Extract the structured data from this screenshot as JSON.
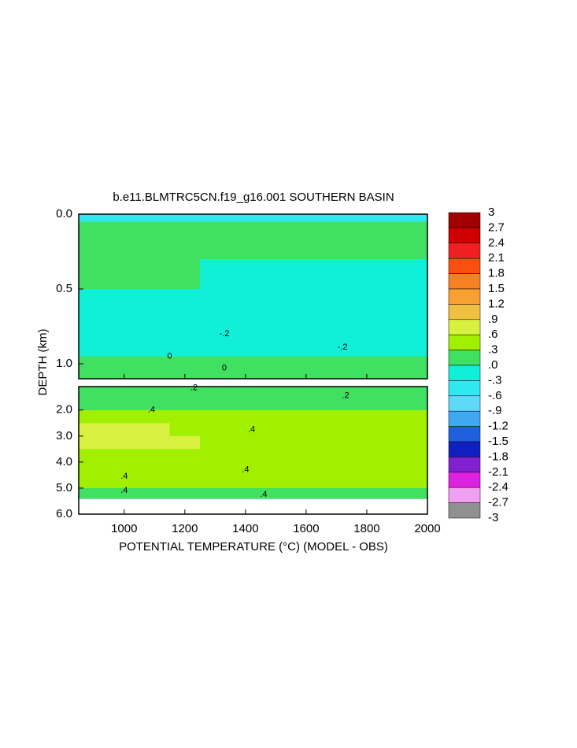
{
  "chart_data": {
    "type": "contour",
    "title": "b.e11.BLMTRC5CN.f19_g16.001 SOUTHERN BASIN",
    "xlabel": "POTENTIAL TEMPERATURE (°C) (MODEL - OBS)",
    "ylabel": "DEPTH (km)",
    "xlim": [
      850,
      2000
    ],
    "xticks": [
      1000,
      1200,
      1400,
      1600,
      1800,
      2000
    ],
    "x_edges": [
      850,
      950,
      1050,
      1150,
      1250,
      1350,
      1450,
      1550,
      1650,
      1750,
      1850,
      1950,
      2000
    ],
    "panels": [
      {
        "ylim": [
          0,
          1.1
        ],
        "yticks": [
          {
            "value": 0,
            "label": "0.0"
          },
          {
            "value": 0.5,
            "label": "0.5"
          },
          {
            "value": 1,
            "label": "1.0"
          }
        ],
        "depth_edges": [
          0,
          0.05,
          0.15,
          0.3,
          0.5,
          0.7,
          0.85,
          0.95,
          1.05,
          1.1
        ],
        "values": [
          [
            -0.5,
            -0.5,
            -0.5,
            -0.5,
            -0.5,
            -0.5,
            -0.5,
            -0.5,
            -0.5,
            -0.5,
            -0.5,
            -0.5
          ],
          [
            0.1,
            0.1,
            0.1,
            0.1,
            0.1,
            0.1,
            0.1,
            0.1,
            0.1,
            0.1,
            0.1,
            0.1
          ],
          [
            0.05,
            0.05,
            0.05,
            0.05,
            0.05,
            0.05,
            0.05,
            0.05,
            0.05,
            0.05,
            0.05,
            0.05
          ],
          [
            0.05,
            0.05,
            0.05,
            0.05,
            -0.1,
            -0.1,
            -0.1,
            -0.1,
            -0.1,
            -0.1,
            -0.1,
            -0.1
          ],
          [
            -0.1,
            -0.1,
            -0.1,
            -0.15,
            -0.15,
            -0.15,
            -0.15,
            -0.15,
            -0.15,
            -0.15,
            -0.15,
            -0.15
          ],
          [
            -0.15,
            -0.15,
            -0.15,
            -0.15,
            -0.25,
            -0.25,
            -0.25,
            -0.25,
            -0.25,
            -0.25,
            -0.25,
            -0.25
          ],
          [
            -0.05,
            -0.05,
            -0.05,
            -0.05,
            -0.05,
            -0.05,
            -0.05,
            -0.05,
            -0.05,
            -0.05,
            -0.05,
            -0.05
          ],
          [
            0.05,
            0.05,
            0.05,
            0.05,
            0.05,
            0.05,
            0.05,
            0.05,
            0.05,
            0.05,
            0.05,
            0.05
          ],
          [
            0.15,
            0.15,
            0.15,
            0.15,
            0.15,
            0.15,
            0.15,
            0.15,
            0.15,
            0.15,
            0.15,
            0.15
          ]
        ],
        "contour_labels": [
          {
            "label": "0",
            "value": 0,
            "x": 1150,
            "depth": 0.95
          },
          {
            "label": "0",
            "value": 0,
            "x": 1330,
            "depth": 1.03
          },
          {
            "label": "-.2",
            "value": -0.2,
            "x": 1330,
            "depth": 0.8
          },
          {
            "label": "-.2",
            "value": -0.2,
            "x": 1720,
            "depth": 0.89
          }
        ]
      },
      {
        "ylim": [
          1.1,
          6
        ],
        "yticks": [
          {
            "value": 2,
            "label": "2.0"
          },
          {
            "value": 3,
            "label": "3.0"
          },
          {
            "value": 4,
            "label": "4.0"
          },
          {
            "value": 5,
            "label": "5.0"
          },
          {
            "value": 6,
            "label": "6.0"
          }
        ],
        "depth_edges": [
          1.1,
          1.5,
          2.0,
          2.5,
          3.0,
          3.5,
          4.0,
          4.5,
          5.0,
          5.4
        ],
        "values": [
          [
            0.2,
            0.2,
            0.2,
            0.2,
            0.2,
            0.2,
            0.2,
            0.2,
            0.2,
            0.2,
            0.2,
            0.2
          ],
          [
            0.25,
            0.25,
            0.25,
            0.25,
            0.25,
            0.25,
            0.25,
            0.25,
            0.25,
            0.25,
            0.25,
            0.25
          ],
          [
            0.4,
            0.4,
            0.4,
            0.4,
            0.4,
            0.4,
            0.4,
            0.4,
            0.4,
            0.4,
            0.4,
            0.4
          ],
          [
            0.65,
            0.65,
            0.65,
            0.45,
            0.45,
            0.45,
            0.45,
            0.45,
            0.45,
            0.45,
            0.45,
            0.45
          ],
          [
            0.65,
            0.65,
            0.65,
            0.65,
            0.45,
            0.45,
            0.45,
            0.45,
            0.45,
            0.45,
            0.45,
            0.45
          ],
          [
            0.4,
            0.4,
            0.4,
            0.4,
            0.4,
            0.4,
            0.4,
            0.4,
            0.4,
            0.4,
            0.4,
            0.4
          ],
          [
            0.35,
            0.35,
            0.35,
            0.35,
            0.35,
            0.35,
            0.35,
            0.35,
            0.35,
            0.35,
            0.35,
            0.35
          ],
          [
            0.3,
            0.3,
            0.3,
            0.3,
            0.3,
            0.3,
            0.3,
            0.3,
            0.3,
            0.3,
            0.3,
            0.3
          ],
          [
            0.25,
            0.25,
            0.25,
            0.25,
            0.25,
            0.25,
            0.25,
            0.25,
            0.25,
            0.25,
            0.25,
            0.25
          ]
        ],
        "contour_labels": [
          {
            "label": ".2",
            "value": 0.2,
            "x": 1230,
            "depth": 1.15
          },
          {
            "label": ".2",
            "value": 0.2,
            "x": 1730,
            "depth": 1.45
          },
          {
            "label": ".4",
            "value": 0.4,
            "x": 1090,
            "depth": 2.0
          },
          {
            "label": ".4",
            "value": 0.4,
            "x": 1420,
            "depth": 2.75
          },
          {
            "label": ".4",
            "value": 0.4,
            "x": 1400,
            "depth": 4.3
          },
          {
            "label": ".4",
            "value": 0.4,
            "x": 1000,
            "depth": 4.55
          },
          {
            "label": ".4",
            "value": 0.4,
            "x": 1000,
            "depth": 5.1
          },
          {
            "label": ".4",
            "value": 0.4,
            "x": 1460,
            "depth": 5.25
          }
        ]
      }
    ],
    "colorbar": {
      "ticks": [
        3,
        2.7,
        2.4,
        2.1,
        1.8,
        1.5,
        1.2,
        {
          "value": 0.9,
          "label": ".9"
        },
        {
          "value": 0.6,
          "label": ".6"
        },
        {
          "value": 0.3,
          "label": ".3"
        },
        {
          "value": 0,
          "label": ".0"
        },
        {
          "value": -0.3,
          "label": "-.3"
        },
        {
          "value": -0.6,
          "label": "-.6"
        },
        {
          "value": -0.9,
          "label": "-.9"
        },
        -1.2,
        -1.5,
        -1.8,
        -2.1,
        -2.4,
        -2.7,
        -3
      ],
      "colors": [
        "#a00000",
        "#d00000",
        "#f02020",
        "#f85010",
        "#f88020",
        "#f8a030",
        "#f0c040",
        "#d8f040",
        "#a0f000",
        "#40e060",
        "#10f0d8",
        "#30e8f0",
        "#60d8f8",
        "#40a8f0",
        "#2060e0",
        "#1020c0",
        "#8020d0",
        "#e020e0",
        "#f0a0f0",
        "#909090"
      ]
    }
  }
}
